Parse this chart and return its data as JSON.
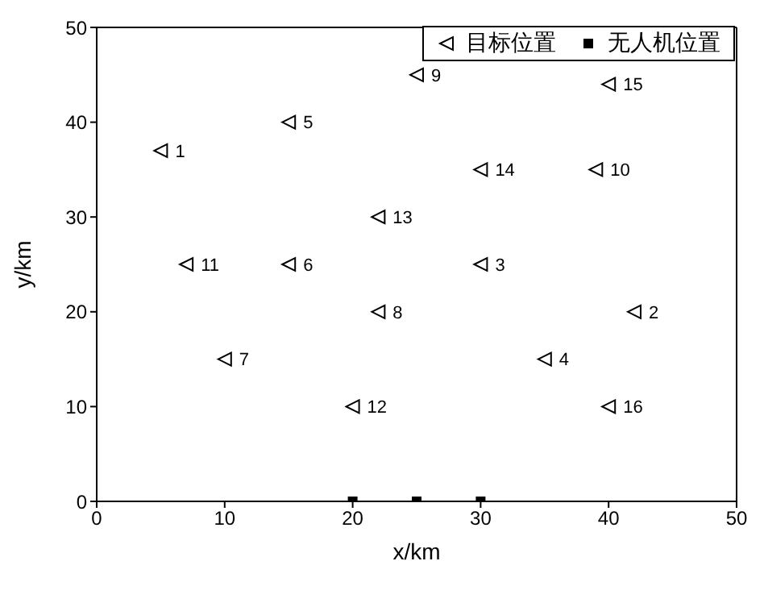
{
  "chart_data": {
    "type": "scatter",
    "xlabel": "x/km",
    "ylabel": "y/km",
    "xlim": [
      0,
      50
    ],
    "ylim": [
      0,
      50
    ],
    "xticks": [
      0,
      10,
      20,
      30,
      40,
      50
    ],
    "yticks": [
      0,
      10,
      20,
      30,
      40,
      50
    ],
    "legend": "top right",
    "series": [
      {
        "name": "目标位置",
        "color": "#000000",
        "marker": "triangle",
        "x": [
          5,
          42,
          30,
          35,
          15,
          15,
          10,
          22,
          25,
          39,
          7,
          20,
          22,
          30,
          40,
          40
        ],
        "values": [
          37,
          20,
          25,
          15,
          40,
          25,
          15,
          20,
          45,
          35,
          25,
          10,
          30,
          35,
          44,
          10
        ]
      },
      {
        "name": "无人机位置",
        "color": "#000000",
        "marker": "square",
        "x": [
          20,
          25,
          30
        ],
        "values": [
          0,
          0,
          0
        ]
      }
    ],
    "annotations": [
      {
        "text": "1",
        "x": 5,
        "y": 37
      },
      {
        "text": "2",
        "x": 42,
        "y": 20
      },
      {
        "text": "3",
        "x": 30,
        "y": 25
      },
      {
        "text": "4",
        "x": 35,
        "y": 15
      },
      {
        "text": "5",
        "x": 15,
        "y": 40
      },
      {
        "text": "6",
        "x": 15,
        "y": 25
      },
      {
        "text": "7",
        "x": 10,
        "y": 15
      },
      {
        "text": "8",
        "x": 22,
        "y": 20
      },
      {
        "text": "9",
        "x": 25,
        "y": 45
      },
      {
        "text": "10",
        "x": 39,
        "y": 35
      },
      {
        "text": "11",
        "x": 7,
        "y": 25
      },
      {
        "text": "12",
        "x": 20,
        "y": 10
      },
      {
        "text": "13",
        "x": 22,
        "y": 30
      },
      {
        "text": "14",
        "x": 30,
        "y": 35
      },
      {
        "text": "15",
        "x": 40,
        "y": 44
      },
      {
        "text": "16",
        "x": 40,
        "y": 10
      }
    ]
  }
}
